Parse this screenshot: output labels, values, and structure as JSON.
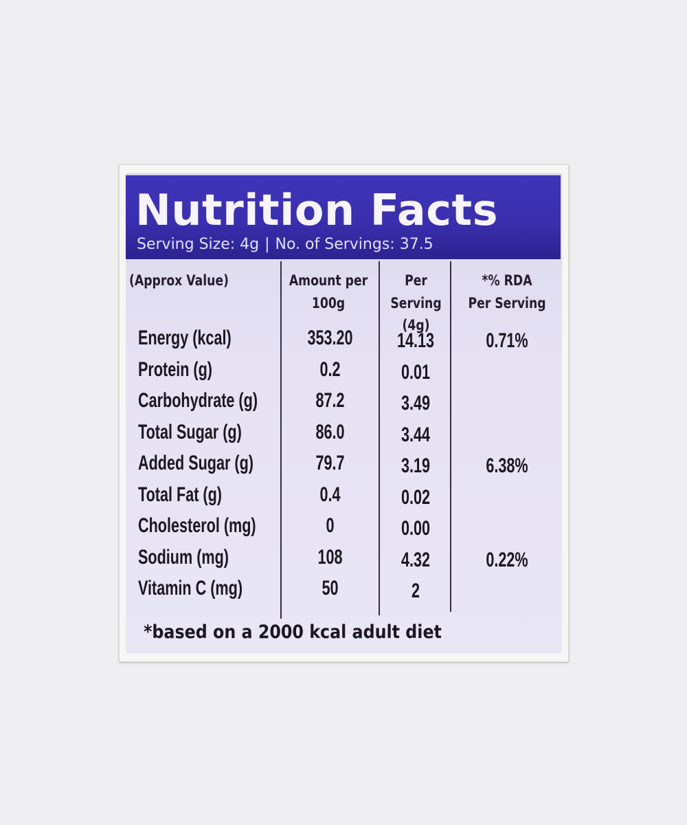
{
  "label": {
    "title": "Nutrition Facts",
    "serving_size": "Serving Size: 4g",
    "separator": "|",
    "servings": "No. of Servings: 37.5",
    "columns": {
      "nutrient": "(Approx Value)",
      "per100_line1": "Amount per",
      "per100_line2": "100g",
      "perserving_line1": "Per Serving",
      "perserving_line2": "(4g)",
      "rda_line1": "*% RDA",
      "rda_line2": "Per Serving"
    },
    "rows": [
      {
        "name": "Energy (kcal)",
        "per100": "353.20",
        "perserving": "14.13",
        "rda": "0.71%"
      },
      {
        "name": "Protein (g)",
        "per100": "0.2",
        "perserving": "0.01",
        "rda": ""
      },
      {
        "name": "Carbohydrate (g)",
        "per100": "87.2",
        "perserving": "3.49",
        "rda": ""
      },
      {
        "name": "Total Sugar (g)",
        "per100": "86.0",
        "perserving": "3.44",
        "rda": ""
      },
      {
        "name": "Added Sugar (g)",
        "per100": "79.7",
        "perserving": "3.19",
        "rda": "6.38%"
      },
      {
        "name": "Total Fat (g)",
        "per100": "0.4",
        "perserving": "0.02",
        "rda": ""
      },
      {
        "name": "Cholesterol (mg)",
        "per100": "0",
        "perserving": "0.00",
        "rda": ""
      },
      {
        "name": "Sodium (mg)",
        "per100": "108",
        "perserving": "4.32",
        "rda": "0.22%"
      },
      {
        "name": "Vitamin C (mg)",
        "per100": "50",
        "perserving": "2",
        "rda": ""
      }
    ],
    "footnote": "*based on a 2000 kcal adult diet",
    "colors": {
      "header": "#3a2fae",
      "face": "#e6e2f4",
      "text": "#1d1622"
    }
  }
}
